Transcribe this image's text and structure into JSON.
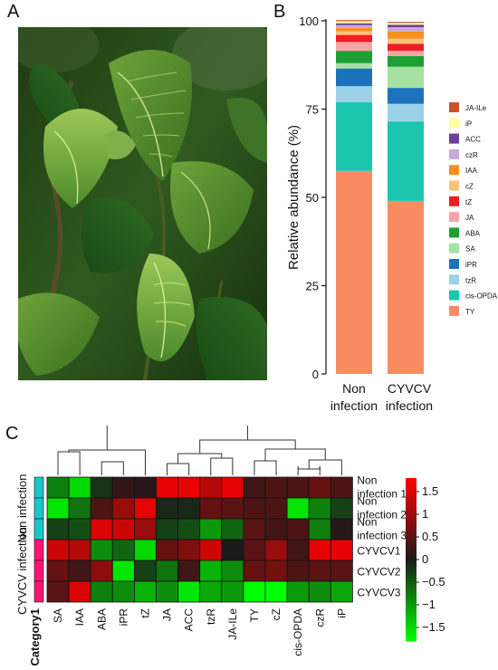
{
  "panels": {
    "a": "A",
    "b": "B",
    "c": "C"
  },
  "colors": {
    "TY": "#F98B62",
    "cis-OPDA": "#1CC6AE",
    "tzR": "#99D2EA",
    "iPR": "#1C73BC",
    "SA": "#A6E1A1",
    "ABA": "#1CA033",
    "JA": "#F8A4A5",
    "tZ": "#EE1C24",
    "cZ": "#FCC279",
    "IAA": "#F8901C",
    "czR": "#C9A8DA",
    "ACC": "#6E3D9A",
    "iP": "#FEFFA0",
    "JA-ILe": "#C8522A",
    "heat_low": "#00FF00",
    "heat_mid": "#1a1a1a",
    "heat_high": "#FF0000",
    "category_non": "#1CC6C6",
    "category_cyvcv": "#FF1577"
  },
  "chart_data": [
    {
      "type": "bar",
      "stacked": true,
      "ylabel": "Relative abundance (%)",
      "ylim": [
        0,
        100
      ],
      "yticks": [
        0,
        25,
        50,
        75,
        100
      ],
      "categories": [
        "Non\ninfection",
        "CYVCV\ninfection"
      ],
      "legend_position": "right",
      "series": [
        {
          "name": "TY",
          "values": [
            57.5,
            49.0
          ]
        },
        {
          "name": "cis-OPDA",
          "values": [
            19.5,
            22.5
          ]
        },
        {
          "name": "tzR",
          "values": [
            4.5,
            5.0
          ]
        },
        {
          "name": "iPR",
          "values": [
            5.0,
            4.5
          ]
        },
        {
          "name": "SA",
          "values": [
            1.5,
            6.0
          ]
        },
        {
          "name": "ABA",
          "values": [
            3.5,
            3.0
          ]
        },
        {
          "name": "JA",
          "values": [
            2.5,
            1.5
          ]
        },
        {
          "name": "tZ",
          "values": [
            2.0,
            2.0
          ]
        },
        {
          "name": "cZ",
          "values": [
            1.0,
            1.5
          ]
        },
        {
          "name": "IAA",
          "values": [
            1.0,
            2.0
          ]
        },
        {
          "name": "czR",
          "values": [
            0.8,
            1.2
          ]
        },
        {
          "name": "ACC",
          "values": [
            0.5,
            0.7
          ]
        },
        {
          "name": "iP",
          "values": [
            0.6,
            0.5
          ]
        },
        {
          "name": "JA-ILe",
          "values": [
            0.3,
            0.3
          ]
        }
      ]
    },
    {
      "type": "heatmap",
      "columns": [
        "SA",
        "IAA",
        "ABA",
        "iPR",
        "tZ",
        "JA",
        "ACC",
        "tzR",
        "JA-ILe",
        "TY",
        "cZ",
        "cis-OPDA",
        "czR",
        "iP"
      ],
      "rows": [
        "Non\ninfection 1",
        "Non\ninfection 2",
        "Non\ninfection 3",
        "CYVCV1",
        "CYVCV2",
        "CYVCV3"
      ],
      "row_groups": [
        "Non infection",
        "Non infection",
        "Non infection",
        "CYVCV infection",
        "CYVCV infection",
        "CYVCV infection"
      ],
      "category_labels": [
        "Non infection",
        "CYVCV infection"
      ],
      "category_title": "Category1",
      "colorbar_ticks": [
        1.5,
        1,
        0.5,
        0,
        -0.5,
        -1,
        -1.5
      ],
      "colorbar_range": [
        -1.8,
        1.8
      ],
      "values": [
        [
          -0.8,
          -1.5,
          -0.2,
          0.2,
          0.1,
          1.6,
          1.6,
          1.2,
          1.6,
          0.3,
          0.4,
          0.4,
          0.6,
          0.4
        ],
        [
          -1.6,
          -0.7,
          0.4,
          1.0,
          1.6,
          -0.1,
          -0.1,
          0.6,
          0.5,
          0.4,
          0.4,
          -1.6,
          -0.8,
          -0.3
        ],
        [
          -0.3,
          -0.4,
          1.5,
          1.4,
          1.0,
          -0.3,
          -0.4,
          -1.0,
          -0.6,
          0.5,
          0.3,
          0.4,
          -0.8,
          0.1
        ],
        [
          1.4,
          1.2,
          -0.9,
          -0.6,
          -1.5,
          0.6,
          0.8,
          1.4,
          0.0,
          0.5,
          1.0,
          0.3,
          1.6,
          1.6
        ],
        [
          0.6,
          0.3,
          0.9,
          -1.6,
          -0.3,
          -0.7,
          0.3,
          -1.2,
          -0.9,
          0.6,
          0.7,
          0.4,
          0.5,
          0.5
        ],
        [
          0.5,
          1.5,
          -0.8,
          -0.9,
          -1.2,
          -0.9,
          -1.6,
          -1.1,
          -1.0,
          -1.8,
          -1.8,
          -1.0,
          -0.9,
          -1.1
        ]
      ]
    }
  ]
}
